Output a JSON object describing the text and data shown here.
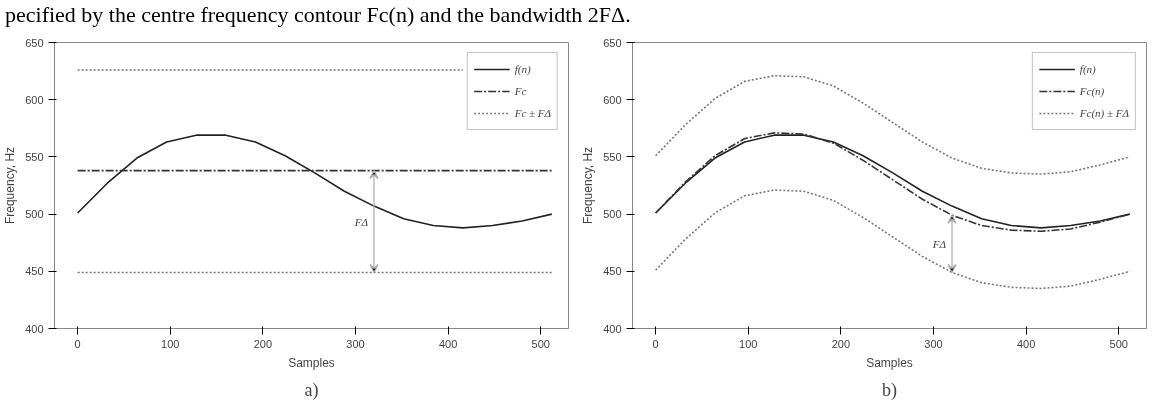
{
  "chart_data": [
    {
      "type": "line",
      "annotations": [
        "pecified by the centre frequency contour Fc(n) and the bandwidth 2FΔ.",
        "FΔ",
        "a)"
      ],
      "xlabel": "Samples",
      "ylabel": "Frequency, Hz",
      "xlim": [
        -25,
        530
      ],
      "ylim": [
        400,
        650
      ],
      "xticks": [
        0,
        100,
        200,
        300,
        400,
        500
      ],
      "yticks": [
        400,
        450,
        500,
        550,
        600,
        650
      ],
      "x": [
        0,
        32,
        64,
        96,
        128,
        160,
        192,
        224,
        256,
        288,
        320,
        352,
        384,
        416,
        448,
        480,
        512
      ],
      "series": [
        {
          "name": "f(n)",
          "color": "#222222",
          "line_style": "solid",
          "values": [
            501,
            527,
            549,
            563,
            569,
            569,
            563,
            551,
            536,
            520,
            507,
            496,
            490,
            488,
            490,
            494,
            500
          ]
        },
        {
          "name": "Fc",
          "color": "#333333",
          "line_style": "dashdot",
          "values": [
            538,
            538,
            538,
            538,
            538,
            538,
            538,
            538,
            538,
            538,
            538,
            538,
            538,
            538,
            538,
            538,
            538
          ]
        },
        {
          "name": "Fc ± FΔ",
          "color": "#777777",
          "line_style": "dotted",
          "values": [
            626,
            626,
            626,
            626,
            626,
            626,
            626,
            626,
            626,
            626,
            626,
            626,
            626,
            626,
            null,
            null,
            null
          ]
        },
        {
          "color": "#777777",
          "line_style": "dotted",
          "values": [
            449,
            449,
            449,
            449,
            449,
            449,
            449,
            449,
            449,
            449,
            449,
            449,
            449,
            449,
            449,
            449,
            449
          ]
        }
      ],
      "legend": "top right",
      "grid": false,
      "marker": "none"
    },
    {
      "type": "line",
      "annotations": [
        "FΔ",
        "b)"
      ],
      "xlabel": "Samples",
      "ylabel": "Frequency, Hz",
      "xlim": [
        -25,
        530
      ],
      "ylim": [
        400,
        650
      ],
      "xticks": [
        0,
        100,
        200,
        300,
        400,
        500
      ],
      "yticks": [
        400,
        450,
        500,
        550,
        600,
        650
      ],
      "x": [
        0,
        32,
        64,
        96,
        128,
        160,
        192,
        224,
        256,
        288,
        320,
        352,
        384,
        416,
        448,
        480,
        512
      ],
      "series": [
        {
          "name": "f(n)",
          "color": "#222222",
          "line_style": "solid",
          "values": [
            501,
            527,
            549,
            563,
            569,
            569,
            563,
            551,
            536,
            520,
            507,
            496,
            490,
            488,
            490,
            494,
            500
          ]
        },
        {
          "name": "Fc(n)",
          "color": "#333333",
          "line_style": "dashdot",
          "values": [
            501,
            528,
            551,
            566,
            571,
            570,
            562,
            547,
            530,
            513,
            499,
            490,
            486,
            485,
            487,
            493,
            500
          ]
        },
        {
          "name": "Fc(n) ± FΔ",
          "color": "#777777",
          "line_style": "dotted",
          "values": [
            551,
            578,
            601,
            616,
            621,
            620,
            612,
            597,
            580,
            563,
            549,
            540,
            536,
            535,
            537,
            543,
            550
          ]
        },
        {
          "color": "#777777",
          "line_style": "dotted",
          "values": [
            451,
            478,
            501,
            516,
            521,
            520,
            512,
            497,
            480,
            463,
            449,
            440,
            436,
            435,
            437,
            443,
            450
          ]
        }
      ],
      "legend": "top right",
      "grid": false,
      "marker": "none"
    }
  ]
}
